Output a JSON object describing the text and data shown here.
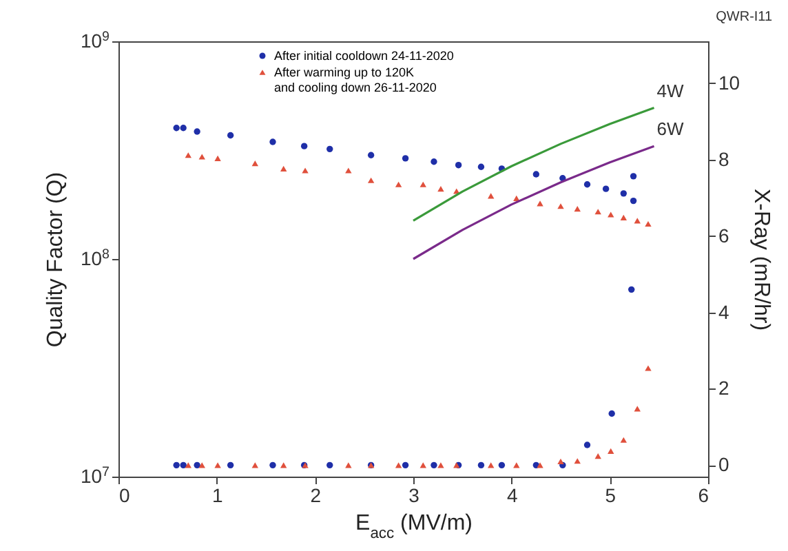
{
  "chart_data": {
    "type": "scatter",
    "title": "QWR-I11",
    "xlabel": "E$_{acc}$ (MV/m)",
    "ylabel": "Quality Factor (Q)",
    "y2label": "X-Ray (mR/hr)",
    "xlim": [
      0,
      6
    ],
    "xticks": [
      0,
      1,
      2,
      3,
      4,
      5,
      6
    ],
    "log": "y",
    "ylim": [
      10000000,
      1000000000
    ],
    "yticks": [
      {
        "value": 10000000,
        "label": "10$^{7}$"
      },
      {
        "value": 100000000,
        "label": "10$^{8}$"
      },
      {
        "value": 1000000000,
        "label": "10$^{9}$"
      }
    ],
    "y2lim": [
      -0.3,
      11.1
    ],
    "y2ticks": [
      0,
      2,
      4,
      6,
      8,
      10
    ],
    "legend": "top",
    "grid": false,
    "series": [
      {
        "name": "After initial cooldown 24-11-2020",
        "marker": "circle",
        "color": "#1f2fa8",
        "x": [
          0.59,
          0.66,
          0.8,
          1.14,
          1.57,
          1.89,
          2.15,
          2.57,
          2.92,
          3.21,
          3.46,
          3.69,
          3.9,
          4.25,
          4.52,
          4.77,
          4.96,
          5.14,
          5.24,
          5.24
        ],
        "values": [
          400000000,
          400000000,
          385000000,
          370000000,
          345000000,
          330000000,
          320000000,
          300000000,
          290000000,
          280000000,
          270000000,
          265000000,
          260000000,
          245000000,
          235000000,
          220000000,
          210000000,
          200000000,
          185000000,
          240000000
        ]
      },
      {
        "name": "After warming up to 120K and cooling down 26-11-2020",
        "marker": "triangle",
        "color": "#e0503c",
        "x": [
          0.71,
          0.85,
          1.01,
          1.39,
          1.68,
          1.9,
          2.34,
          2.57,
          2.85,
          3.1,
          3.28,
          3.44,
          3.79,
          4.05,
          4.29,
          4.5,
          4.67,
          4.88,
          5.01,
          5.14,
          5.28,
          5.39
        ],
        "values": [
          300000000,
          295000000,
          290000000,
          275000000,
          260000000,
          255000000,
          255000000,
          230000000,
          220000000,
          220000000,
          210000000,
          205000000,
          195000000,
          190000000,
          180000000,
          175000000,
          170000000,
          165000000,
          160000000,
          155000000,
          150000000,
          145000000
        ]
      },
      {
        "name": "4W",
        "type": "line",
        "color": "#3a9a3a",
        "x": [
          3,
          3.5,
          4,
          4.5,
          5,
          5.45
        ],
        "values": [
          150000000,
          204000000,
          267000000,
          338000000,
          417000000,
          495000000
        ]
      },
      {
        "name": "6W",
        "type": "line",
        "color": "#7a2a8a",
        "x": [
          3,
          3.5,
          4,
          4.5,
          5,
          5.45
        ],
        "values": [
          100000000,
          136000000,
          178000000,
          225000000,
          278000000,
          330000000
        ]
      },
      {
        "axis": "y2",
        "marker": "circle",
        "color": "#1f2fa8",
        "x": [
          0.59,
          0.66,
          0.8,
          1.14,
          1.57,
          1.89,
          2.15,
          2.57,
          2.92,
          3.21,
          3.46,
          3.69,
          3.9,
          4.25,
          4.52,
          4.77,
          5.02,
          5.22
        ],
        "values": [
          0,
          0,
          0,
          0,
          0,
          0,
          0,
          0,
          0,
          0,
          0,
          0,
          0,
          0,
          0,
          0.53,
          1.35,
          4.6
        ]
      },
      {
        "axis": "y2",
        "marker": "triangle",
        "color": "#e0503c",
        "x": [
          0.71,
          0.85,
          1.01,
          1.39,
          1.68,
          1.9,
          2.34,
          2.57,
          2.85,
          3.1,
          3.28,
          3.44,
          3.79,
          4.05,
          4.29,
          4.5,
          4.67,
          4.88,
          5.01,
          5.14,
          5.28,
          5.39
        ],
        "values": [
          0,
          0,
          0,
          0,
          0,
          0,
          0,
          0,
          0,
          0,
          0,
          0,
          0,
          0,
          0,
          0.1,
          0.11,
          0.24,
          0.37,
          0.66,
          1.48,
          2.54
        ]
      }
    ]
  }
}
